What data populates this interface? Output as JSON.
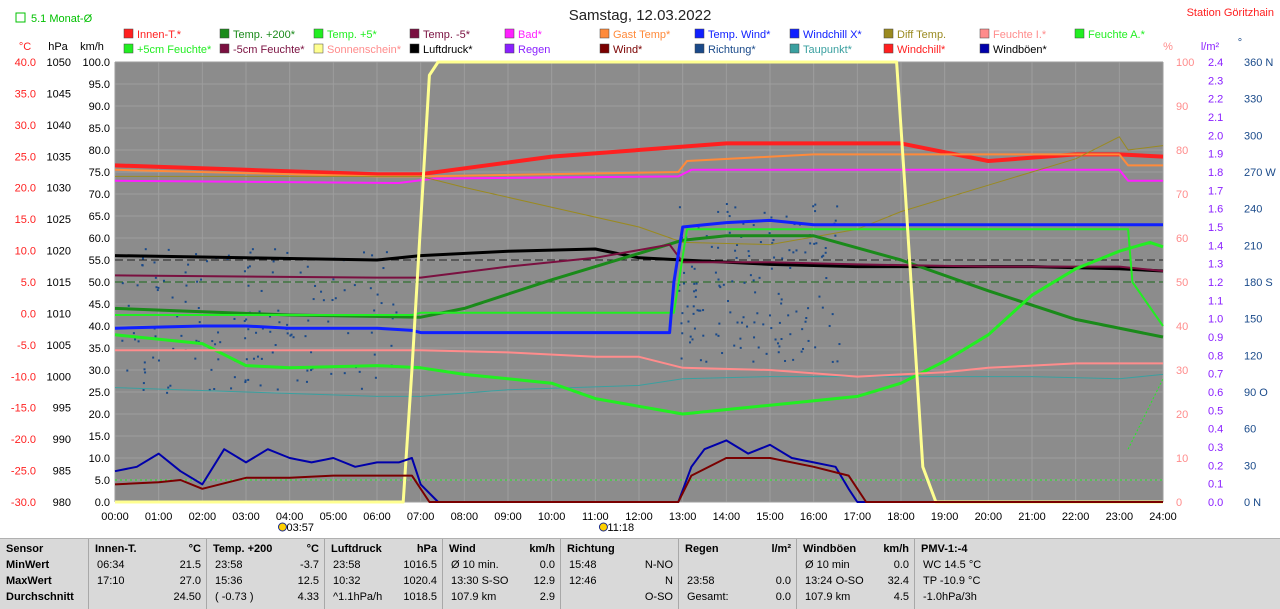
{
  "header": {
    "title": "Samstag, 12.03.2022",
    "station": "Station Göritzhain",
    "topleft_label": "5.1 Monat-Ø",
    "colors": {
      "title": "#222222",
      "station": "#ff2020",
      "topleft": "#00c000"
    }
  },
  "legend": [
    {
      "label": "Innen-T.*",
      "color": "#ff2020"
    },
    {
      "label": "Temp. +200*",
      "color": "#1a8a1a"
    },
    {
      "label": "Temp. +5*",
      "color": "#22ee22"
    },
    {
      "label": "Temp. -5*",
      "color": "#7a1040"
    },
    {
      "label": "Bad*",
      "color": "#ff20ff"
    },
    {
      "label": "Gast Temp*",
      "color": "#ff8a3a"
    },
    {
      "label": "Temp. Wind*",
      "color": "#1020ff"
    },
    {
      "label": "Windchill X*",
      "color": "#1020ff"
    },
    {
      "label": "Diff Temp.",
      "color": "#9a8a20"
    },
    {
      "label": "Feuchte I.*",
      "color": "#ff8c8c"
    },
    {
      "label": "Feuchte A.*",
      "color": "#22ee22"
    },
    {
      "label": "+5cm Feuchte*",
      "color": "#22ee22"
    },
    {
      "label": "-5cm Feuchte*",
      "color": "#7a1040"
    },
    {
      "label": "Sonnenschein*",
      "color": "#ffff90"
    },
    {
      "label": "Luftdruck*",
      "color": "#000000"
    },
    {
      "label": "Regen",
      "color": "#8a20ff"
    },
    {
      "label": "Wind*",
      "color": "#7a0000"
    },
    {
      "label": "Richtung*",
      "color": "#1a4a8a"
    },
    {
      "label": "Taupunkt*",
      "color": "#3aa0a0"
    },
    {
      "label": "Windchill*",
      "color": "#ff2020"
    },
    {
      "label": "Windböen*",
      "color": "#0000aa"
    }
  ],
  "chart_data": {
    "type": "line",
    "x_ticks": [
      "00:00",
      "01:00",
      "02:00",
      "03:00",
      "04:00",
      "05:00",
      "06:00",
      "07:00",
      "08:00",
      "09:00",
      "10:00",
      "11:00",
      "12:00",
      "13:00",
      "14:00",
      "15:00",
      "16:00",
      "17:00",
      "18:00",
      "19:00",
      "20:00",
      "21:00",
      "22:00",
      "23:00",
      "24:00"
    ],
    "axes": {
      "temp": {
        "label": "°C",
        "ticks": [
          "40.0",
          "35.0",
          "30.0",
          "25.0",
          "20.0",
          "15.0",
          "10.0",
          "5.0",
          "0.0",
          "-5.0",
          "-10.0",
          "-15.0",
          "-20.0",
          "-25.0",
          "-30.0"
        ],
        "color": "#ff2020",
        "range": [
          -30,
          40
        ]
      },
      "pressure": {
        "label": "hPa",
        "ticks": [
          "1050",
          "1045",
          "1040",
          "1035",
          "1030",
          "1025",
          "1020",
          "1015",
          "1010",
          "1005",
          "1000",
          "995",
          "990",
          "985",
          "980"
        ],
        "color": "#000000",
        "range": [
          980,
          1050
        ]
      },
      "wind": {
        "label": "km/h",
        "ticks": [
          "100.0",
          "95.0",
          "90.0",
          "85.0",
          "80.0",
          "75.0",
          "70.0",
          "65.0",
          "60.0",
          "55.0",
          "50.0",
          "45.0",
          "40.0",
          "35.0",
          "30.0",
          "25.0",
          "20.0",
          "15.0",
          "10.0",
          "5.0",
          "0.0"
        ],
        "color": "#000000",
        "range": [
          0,
          100
        ]
      },
      "humidity": {
        "label": "%",
        "ticks": [
          "100",
          "90",
          "80",
          "70",
          "60",
          "50",
          "40",
          "30",
          "20",
          "10",
          "0"
        ],
        "color": "#ff8c8c",
        "range": [
          0,
          100
        ]
      },
      "rain": {
        "label": "l/m²",
        "ticks": [
          "2.4",
          "2.3",
          "2.2",
          "2.1",
          "2.0",
          "1.9",
          "1.8",
          "1.7",
          "1.6",
          "1.5",
          "1.4",
          "1.3",
          "1.2",
          "1.1",
          "1.0",
          "0.9",
          "0.8",
          "0.7",
          "0.6",
          "0.5",
          "0.4",
          "0.3",
          "0.2",
          "0.1",
          "0.0"
        ],
        "color": "#8a20ff",
        "range": [
          0,
          2.5
        ]
      },
      "direction": {
        "label": "°",
        "ticks": [
          "360 N",
          "330",
          "300",
          "270 W",
          "240",
          "210",
          "180 S",
          "150",
          "120",
          "90 O",
          "60",
          "30",
          "0 N"
        ],
        "color": "#1a4a8a",
        "range": [
          0,
          360
        ]
      }
    },
    "sun_markers": [
      {
        "time": "03:57",
        "hour": 3.95
      },
      {
        "time": "11:18",
        "hour": 11.3
      }
    ],
    "series": [
      {
        "name": "Innen-T.*",
        "color": "#ff2020",
        "axis": "wind",
        "width": 4,
        "x": [
          0,
          3,
          6,
          7,
          10,
          14,
          18,
          20,
          22,
          23,
          24
        ],
        "values": [
          76.5,
          75.5,
          74.5,
          74.5,
          78.5,
          81.5,
          81.5,
          77.5,
          79,
          79,
          78.5
        ]
      },
      {
        "name": "Gast Temp*",
        "color": "#ff8a3a",
        "axis": "wind",
        "width": 2,
        "x": [
          0,
          6,
          7,
          12.9,
          13.1,
          16,
          18,
          23,
          23.2,
          24
        ],
        "values": [
          75.5,
          74,
          74,
          75,
          77.5,
          79,
          79,
          79,
          76.5,
          76.5
        ]
      },
      {
        "name": "Bad*",
        "color": "#ff20ff",
        "axis": "wind",
        "width": 2,
        "x": [
          0,
          6.5,
          7.3,
          12.9,
          13.2,
          23,
          23.2,
          24
        ],
        "values": [
          73,
          72.5,
          73.5,
          74,
          75.5,
          75.5,
          73,
          73
        ]
      },
      {
        "name": "Diff Temp.",
        "color": "#9a8a20",
        "axis": "wind",
        "width": 1,
        "x": [
          0,
          7,
          8,
          10,
          12,
          13,
          15,
          17,
          18,
          20,
          22,
          23,
          23.2,
          24
        ],
        "values": [
          74,
          74,
          71.5,
          67,
          62.5,
          59,
          58.5,
          62,
          66,
          72,
          78,
          83,
          80,
          81
        ]
      },
      {
        "name": "Luftdruck*",
        "color": "#000000",
        "axis": "wind",
        "width": 3,
        "x": [
          0,
          3,
          6,
          7,
          9,
          11,
          12,
          13,
          15,
          17,
          19,
          21,
          23,
          24
        ],
        "values": [
          56,
          55.5,
          55,
          56,
          57,
          57.5,
          55.5,
          55,
          54,
          53.5,
          53.5,
          53.5,
          53,
          52.5
        ]
      },
      {
        "name": "Temp. +200*",
        "color": "#1a8a1a",
        "axis": "wind",
        "width": 3,
        "x": [
          0,
          4,
          7,
          8,
          10,
          12,
          13,
          14,
          16,
          18,
          20,
          22,
          24
        ],
        "values": [
          44,
          42.5,
          42,
          44,
          50.5,
          56.5,
          59.5,
          60.5,
          60.5,
          55,
          48,
          41.5,
          37.5
        ]
      },
      {
        "name": "Temp. -5*",
        "color": "#7a1040",
        "axis": "wind",
        "width": 2,
        "x": [
          0,
          6,
          7,
          9,
          11,
          12.7,
          13,
          15,
          17,
          20,
          23,
          24
        ],
        "values": [
          51.5,
          51,
          51,
          53.5,
          55.5,
          58.5,
          54.5,
          54.5,
          54,
          53.5,
          53.5,
          52.5
        ]
      },
      {
        "name": "Taupunkt*",
        "color": "#3aa0a0",
        "axis": "wind",
        "width": 1,
        "x": [
          0,
          3,
          6,
          7,
          9,
          12,
          13,
          15,
          17,
          19,
          21,
          23,
          24
        ],
        "values": [
          26,
          25,
          24,
          24,
          25.5,
          26.5,
          28,
          28.5,
          28.5,
          28.5,
          28.5,
          28,
          29
        ]
      },
      {
        "name": "Temp. +5*",
        "color": "#22ee22",
        "axis": "wind",
        "width": 2,
        "x": [
          0,
          6.8,
          7,
          12.8,
          13.1,
          14,
          16,
          18,
          20,
          22,
          23.2,
          23.3,
          24
        ],
        "values": [
          42.5,
          42.5,
          43,
          43,
          62,
          62,
          62,
          62,
          62,
          62,
          62,
          50,
          40
        ]
      },
      {
        "name": "Feuchte A.*",
        "color": "#22ee22",
        "axis": "wind",
        "width": 3,
        "x": [
          0,
          2,
          3,
          4,
          6,
          7,
          8,
          10,
          11,
          13,
          15,
          17,
          18,
          19,
          20,
          21,
          22,
          23,
          23.7,
          24
        ],
        "values": [
          38,
          36,
          31,
          30.5,
          31,
          30.5,
          29,
          27,
          23.5,
          20,
          22,
          24,
          27,
          32,
          38,
          47,
          53,
          57,
          59,
          58
        ]
      },
      {
        "name": "Feuchte I.*",
        "color": "#ff8c8c",
        "axis": "wind",
        "width": 2,
        "x": [
          0,
          1,
          3,
          6,
          7,
          9,
          11,
          12,
          13,
          15,
          17,
          18,
          19,
          20,
          21,
          22,
          24
        ],
        "values": [
          34.5,
          34.5,
          34.5,
          34.5,
          34.5,
          34,
          33,
          33,
          30.5,
          30,
          28.5,
          29,
          29.5,
          30.5,
          31,
          31.5,
          31.5
        ]
      },
      {
        "name": "Temp. Wind*",
        "color": "#1020ff",
        "axis": "wind",
        "width": 3,
        "x": [
          0,
          2,
          3,
          4,
          6,
          6.8,
          7,
          12.7,
          12.8,
          13,
          13.5,
          14,
          15,
          16,
          17,
          24
        ],
        "values": [
          39.5,
          40,
          40,
          39.5,
          39.5,
          39,
          38.5,
          38.5,
          50,
          62.5,
          63,
          63.5,
          64,
          63,
          63,
          63
        ]
      },
      {
        "name": "Sonnenschein*",
        "color": "#ffff90",
        "axis": "wind",
        "width": 3,
        "x": [
          0,
          6.6,
          6.8,
          7.2,
          7.4,
          17.9,
          18.1,
          18.5,
          18.8,
          24
        ],
        "values": [
          0,
          0,
          30,
          97,
          100,
          100,
          70,
          8,
          0,
          0
        ]
      },
      {
        "name": "Windböen*",
        "color": "#0000aa",
        "axis": "wind",
        "width": 2,
        "x": [
          0,
          0.5,
          1,
          1.5,
          2,
          2.5,
          3,
          3.5,
          4,
          4.5,
          5,
          5.5,
          6,
          6.5,
          6.8,
          7,
          7.4,
          12.9,
          13.2,
          13.5,
          14,
          14.5,
          15,
          15.5,
          16,
          16.5,
          16.8,
          17,
          24
        ],
        "values": [
          7,
          8,
          11,
          7,
          4,
          12,
          9,
          12,
          10,
          9,
          10,
          8,
          9,
          9,
          10,
          4,
          0,
          0,
          8,
          12,
          14,
          11,
          13,
          10,
          9,
          8,
          3,
          0,
          0
        ]
      },
      {
        "name": "Wind*",
        "color": "#7a0000",
        "axis": "wind",
        "width": 2,
        "x": [
          0,
          1,
          1.5,
          2,
          3,
          4,
          5,
          6,
          6.8,
          7.2,
          12.9,
          13.2,
          14,
          15,
          16,
          16.8,
          17.2,
          24
        ],
        "values": [
          4,
          4.5,
          5,
          3,
          5.5,
          5.5,
          6,
          6,
          6,
          0,
          0,
          6,
          10,
          10,
          8,
          6,
          0,
          0
        ]
      }
    ]
  },
  "summary": {
    "row_labels": [
      "Sensor",
      "MinWert",
      "MaxWert",
      "Durchschnitt"
    ],
    "columns": [
      {
        "title": "Innen-T.",
        "unit": "°C",
        "rows": [
          [
            "06:34",
            "21.5"
          ],
          [
            "17:10",
            "27.0"
          ],
          [
            "",
            "24.50"
          ]
        ]
      },
      {
        "title": "Temp. +200",
        "unit": "°C",
        "rows": [
          [
            "23:58",
            "-3.7"
          ],
          [
            "15:36",
            "12.5"
          ],
          [
            "( -0.73 )",
            "4.33"
          ]
        ]
      },
      {
        "title": "Luftdruck",
        "unit": "hPa",
        "rows": [
          [
            "23:58",
            "1016.5"
          ],
          [
            "10:32",
            "1020.4"
          ],
          [
            "^1.1hPa/h",
            "1018.5"
          ]
        ]
      },
      {
        "title": "Wind",
        "unit": "km/h",
        "rows": [
          [
            "Ø 10 min.",
            "0.0"
          ],
          [
            "13:30   S-SO",
            "12.9"
          ],
          [
            "107.9 km",
            "2.9"
          ]
        ]
      },
      {
        "title": "Richtung",
        "unit": "",
        "rows": [
          [
            "15:48",
            "N-NO"
          ],
          [
            "12:46",
            "N"
          ],
          [
            "",
            "O-SO"
          ]
        ]
      },
      {
        "title": "Regen",
        "unit": "l/m²",
        "rows": [
          [
            "",
            ""
          ],
          [
            "23:58",
            "0.0"
          ],
          [
            "Gesamt:",
            "0.0"
          ]
        ]
      },
      {
        "title": "Windböen",
        "unit": "km/h",
        "rows": [
          [
            "Ø 10 min",
            "0.0"
          ],
          [
            "13:24   O-SO",
            "32.4"
          ],
          [
            "107.9 km",
            "4.5"
          ]
        ]
      },
      {
        "title": "PMV-1:-4",
        "unit": "",
        "rows": [
          [
            "WC 14.5 °C",
            ""
          ],
          [
            "TP -10.9 °C",
            ""
          ],
          [
            "-1.0hPa/3h",
            ""
          ]
        ]
      }
    ]
  }
}
